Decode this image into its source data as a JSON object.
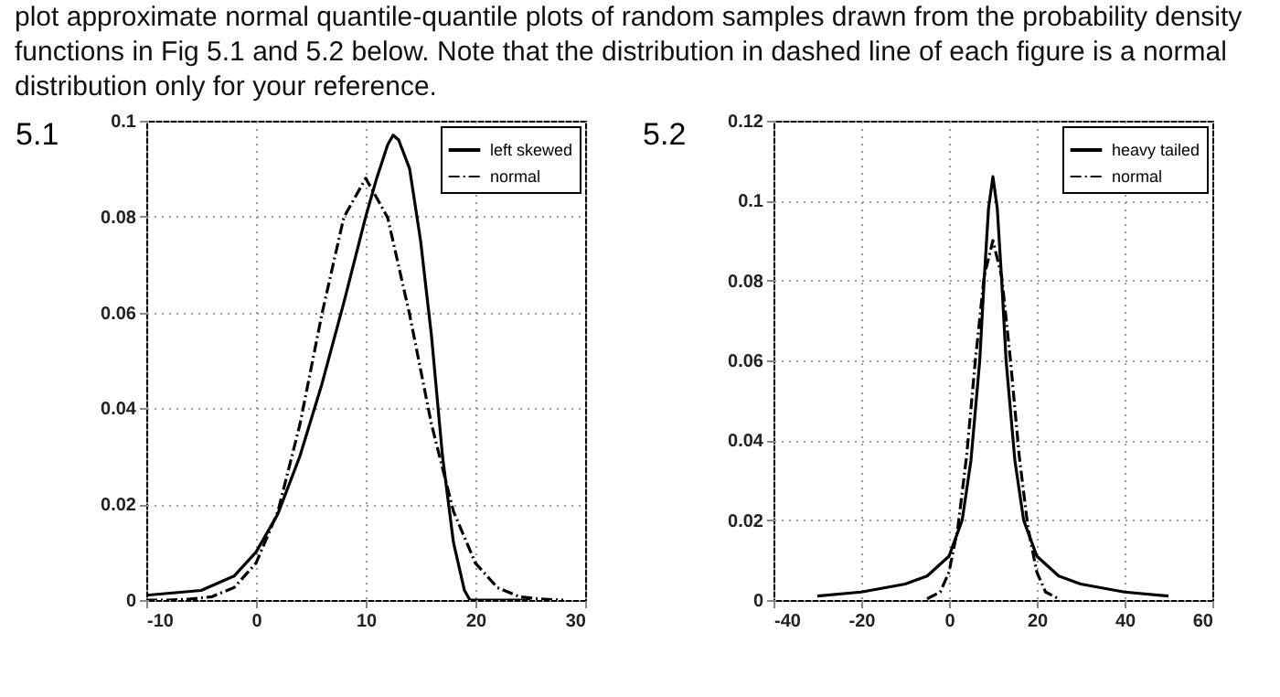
{
  "chart_data": [
    {
      "type": "line",
      "title": "5.1",
      "annotations": [
        "plot approximate normal quantile-quantile plots of random samples drawn from the probability density functions in Fig 5.1 and 5.2 below. Note that the distribution in dashed line of each figure is a normal distribution only for your reference."
      ],
      "xlim": [
        -10,
        30
      ],
      "xticks": [
        -10,
        0,
        10,
        20,
        30
      ],
      "ylim": [
        0,
        0.1
      ],
      "yticks": [
        0,
        0.02,
        0.04,
        0.06,
        0.08,
        0.1
      ],
      "grid": true,
      "legend": "top right",
      "series": [
        {
          "name": "left skewed",
          "color": "#000000",
          "line_style": "solid",
          "x": [
            -10,
            -5,
            -2,
            0,
            2,
            4,
            6,
            8,
            10,
            11,
            12,
            12.5,
            13,
            14,
            15,
            16,
            17,
            18,
            19,
            19.5,
            20,
            25
          ],
          "values": [
            0.001,
            0.002,
            0.005,
            0.01,
            0.018,
            0.03,
            0.045,
            0.062,
            0.08,
            0.088,
            0.095,
            0.097,
            0.096,
            0.09,
            0.075,
            0.055,
            0.03,
            0.012,
            0.002,
            0,
            0,
            0
          ]
        },
        {
          "name": "normal",
          "color": "#000000",
          "line_style": "dashed",
          "x": [
            -10,
            -8,
            -6,
            -4,
            -2,
            0,
            2,
            4,
            6,
            8,
            10,
            12,
            14,
            16,
            18,
            20,
            22,
            24,
            26,
            28
          ],
          "values": [
            0,
            0,
            0.0002,
            0.0007,
            0.0026,
            0.0077,
            0.0185,
            0.0366,
            0.0596,
            0.0798,
            0.088,
            0.0798,
            0.0596,
            0.0366,
            0.0185,
            0.0077,
            0.0026,
            0.0007,
            0.0002,
            0
          ]
        }
      ]
    },
    {
      "type": "line",
      "title": "5.2",
      "xlim": [
        -40,
        60
      ],
      "xticks": [
        -40,
        -20,
        0,
        20,
        40,
        60
      ],
      "ylim": [
        0,
        0.12
      ],
      "yticks": [
        0,
        0.02,
        0.04,
        0.06,
        0.08,
        0.1,
        0.12
      ],
      "grid": true,
      "legend": "top right",
      "series": [
        {
          "name": "heavy tailed",
          "color": "#000000",
          "line_style": "solid",
          "x": [
            -30,
            -20,
            -10,
            -5,
            0,
            3,
            5,
            7,
            8,
            9,
            10,
            11,
            12,
            13,
            15,
            17,
            20,
            25,
            30,
            40,
            50
          ],
          "values": [
            0.001,
            0.002,
            0.004,
            0.006,
            0.011,
            0.02,
            0.035,
            0.06,
            0.08,
            0.098,
            0.106,
            0.098,
            0.08,
            0.06,
            0.035,
            0.02,
            0.011,
            0.006,
            0.004,
            0.002,
            0.001
          ]
        },
        {
          "name": "normal",
          "color": "#000000",
          "line_style": "dashed",
          "x": [
            -5,
            -2,
            0,
            2,
            4,
            6,
            8,
            10,
            12,
            14,
            16,
            18,
            20,
            22,
            25
          ],
          "values": [
            0.0003,
            0.002,
            0.007,
            0.018,
            0.036,
            0.06,
            0.081,
            0.09,
            0.081,
            0.06,
            0.036,
            0.018,
            0.007,
            0.002,
            0.0003
          ]
        }
      ]
    }
  ]
}
